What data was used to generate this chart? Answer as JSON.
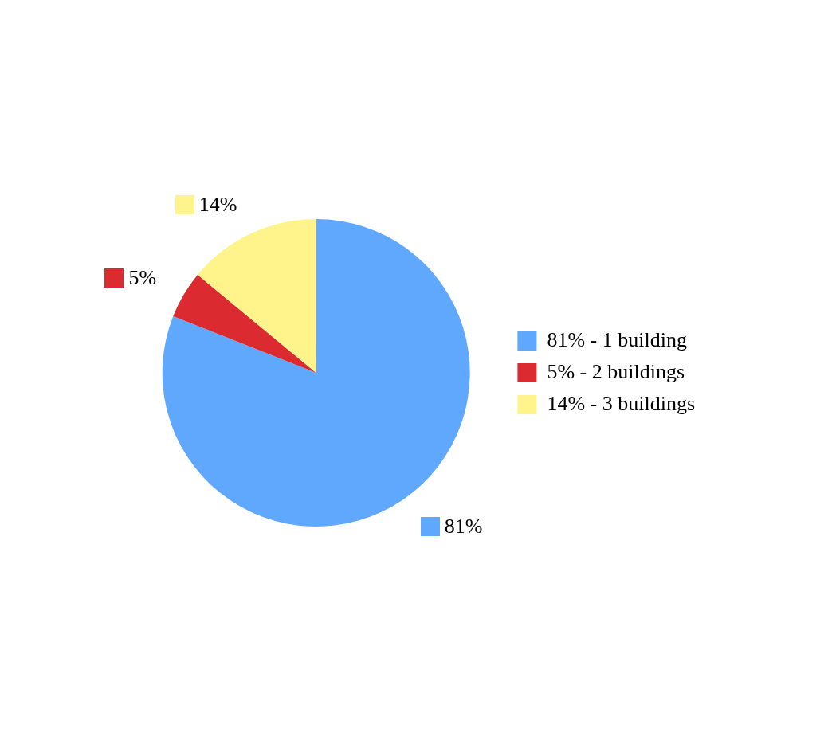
{
  "chart_data": {
    "type": "pie",
    "categories": [
      "81% - 1 building",
      "5% - 2 buildings",
      "14% - 3 buildings"
    ],
    "values": [
      81,
      5,
      14
    ],
    "colors": [
      "#60a8fe",
      "#dc2b30",
      "#fff38c"
    ],
    "value_labels": [
      "81%",
      "5%",
      "14%"
    ],
    "legend": "right"
  }
}
